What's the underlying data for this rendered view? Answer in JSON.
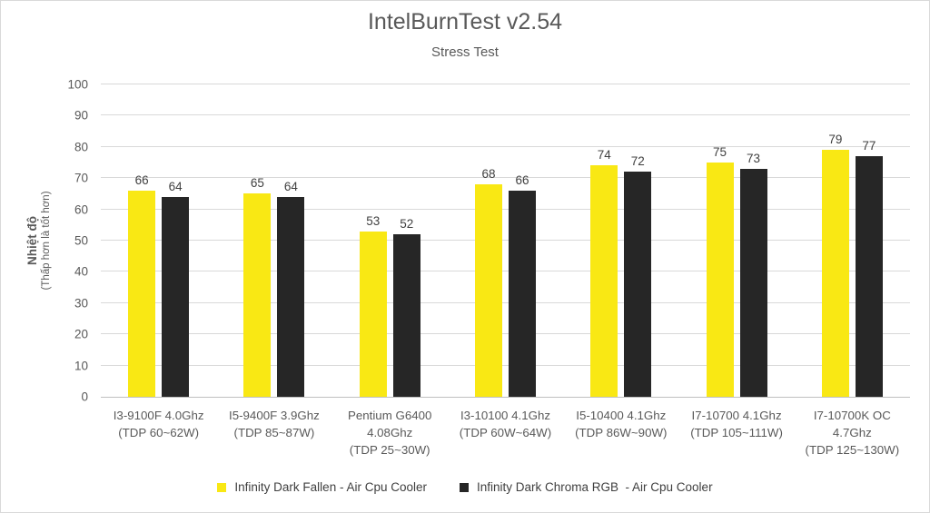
{
  "chart_data": {
    "type": "bar",
    "title": "IntelBurnTest v2.54",
    "subtitle": "Stress Test",
    "ylabel": "Nhiệt độ",
    "ylabel_note": "(Thấp hơn là tốt hơn)",
    "ylim": [
      0,
      100
    ],
    "ytick_step": 10,
    "grid": true,
    "legend_position": "bottom",
    "categories": [
      [
        "I3-9100F 4.0Ghz",
        "(TDP 60~62W)"
      ],
      [
        "I5-9400F 3.9Ghz",
        "(TDP 85~87W)"
      ],
      [
        "Pentium G6400",
        "4.08Ghz",
        "(TDP 25~30W)"
      ],
      [
        "I3-10100 4.1Ghz",
        "(TDP 60W~64W)"
      ],
      [
        "I5-10400 4.1Ghz",
        "(TDP 86W~90W)"
      ],
      [
        "I7-10700 4.1Ghz",
        "(TDP 105~111W)"
      ],
      [
        "I7-10700K OC",
        "4.7Ghz",
        "(TDP 125~130W)"
      ]
    ],
    "series": [
      {
        "name": "Infinity Dark Fallen - Air Cpu Cooler",
        "color": "#F9E814",
        "values": [
          66,
          65,
          53,
          68,
          74,
          75,
          79
        ]
      },
      {
        "name": "Infinity Dark Chroma RGB  - Air Cpu Cooler",
        "color": "#262626",
        "values": [
          64,
          64,
          52,
          66,
          72,
          73,
          77
        ]
      }
    ],
    "colors": {
      "background": "#FFFFFF",
      "border": "#D9D9D9",
      "gridline": "#D9D9D9",
      "axis_line": "#BFBFBF",
      "title_text": "#595959",
      "axis_text": "#595959",
      "value_label_text": "#404040"
    }
  }
}
